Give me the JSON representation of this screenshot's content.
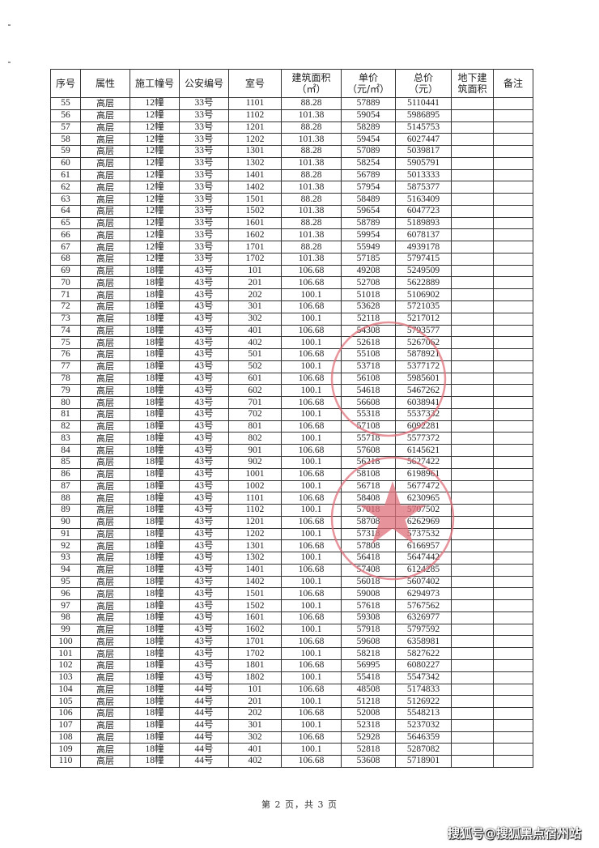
{
  "headers": [
    "序号",
    "属性",
    "施工幢号",
    "公安编号",
    "室号",
    "建筑面积\n（㎡）",
    "单价\n（元/㎡）",
    "总价\n（元）",
    "地下建\n筑面积",
    "备注"
  ],
  "rows": [
    [
      "55",
      "高层",
      "12幢",
      "33号",
      "1101",
      "88.28",
      "57889",
      "5110441"
    ],
    [
      "56",
      "高层",
      "12幢",
      "33号",
      "1102",
      "101.38",
      "59054",
      "5986895"
    ],
    [
      "57",
      "高层",
      "12幢",
      "33号",
      "1201",
      "88.28",
      "58289",
      "5145753"
    ],
    [
      "58",
      "高层",
      "12幢",
      "33号",
      "1202",
      "101.38",
      "59454",
      "6027447"
    ],
    [
      "59",
      "高层",
      "12幢",
      "33号",
      "1301",
      "88.28",
      "57089",
      "5039817"
    ],
    [
      "60",
      "高层",
      "12幢",
      "33号",
      "1302",
      "101.38",
      "58254",
      "5905791"
    ],
    [
      "61",
      "高层",
      "12幢",
      "33号",
      "1401",
      "88.28",
      "56789",
      "5013333"
    ],
    [
      "62",
      "高层",
      "12幢",
      "33号",
      "1402",
      "101.38",
      "57954",
      "5875377"
    ],
    [
      "63",
      "高层",
      "12幢",
      "33号",
      "1501",
      "88.28",
      "58489",
      "5163409"
    ],
    [
      "64",
      "高层",
      "12幢",
      "33号",
      "1502",
      "101.38",
      "59654",
      "6047723"
    ],
    [
      "65",
      "高层",
      "12幢",
      "33号",
      "1601",
      "88.28",
      "58789",
      "5189893"
    ],
    [
      "66",
      "高层",
      "12幢",
      "33号",
      "1602",
      "101.38",
      "59954",
      "6078137"
    ],
    [
      "67",
      "高层",
      "12幢",
      "33号",
      "1701",
      "88.28",
      "55949",
      "4939178"
    ],
    [
      "68",
      "高层",
      "12幢",
      "33号",
      "1702",
      "101.38",
      "57185",
      "5797415"
    ],
    [
      "69",
      "高层",
      "18幢",
      "43号",
      "101",
      "106.68",
      "49208",
      "5249509"
    ],
    [
      "70",
      "高层",
      "18幢",
      "43号",
      "201",
      "106.68",
      "52708",
      "5622889"
    ],
    [
      "71",
      "高层",
      "18幢",
      "43号",
      "202",
      "100.1",
      "51018",
      "5106902"
    ],
    [
      "72",
      "高层",
      "18幢",
      "43号",
      "301",
      "106.68",
      "53628",
      "5721035"
    ],
    [
      "73",
      "高层",
      "18幢",
      "43号",
      "302",
      "100.1",
      "52118",
      "5217012"
    ],
    [
      "74",
      "高层",
      "18幢",
      "43号",
      "401",
      "106.68",
      "54308",
      "5793577"
    ],
    [
      "75",
      "高层",
      "18幢",
      "43号",
      "402",
      "100.1",
      "52618",
      "5267062"
    ],
    [
      "76",
      "高层",
      "18幢",
      "43号",
      "501",
      "106.68",
      "55108",
      "5878921"
    ],
    [
      "77",
      "高层",
      "18幢",
      "43号",
      "502",
      "100.1",
      "53718",
      "5377172"
    ],
    [
      "78",
      "高层",
      "18幢",
      "43号",
      "601",
      "106.68",
      "56108",
      "5985601"
    ],
    [
      "79",
      "高层",
      "18幢",
      "43号",
      "602",
      "100.1",
      "54618",
      "5467262"
    ],
    [
      "80",
      "高层",
      "18幢",
      "43号",
      "701",
      "106.68",
      "56608",
      "6038941"
    ],
    [
      "81",
      "高层",
      "18幢",
      "43号",
      "702",
      "100.1",
      "55318",
      "5537332"
    ],
    [
      "82",
      "高层",
      "18幢",
      "43号",
      "801",
      "106.68",
      "57108",
      "6092281"
    ],
    [
      "83",
      "高层",
      "18幢",
      "43号",
      "802",
      "100.1",
      "55718",
      "5577372"
    ],
    [
      "84",
      "高层",
      "18幢",
      "43号",
      "901",
      "106.68",
      "57608",
      "6145621"
    ],
    [
      "85",
      "高层",
      "18幢",
      "43号",
      "902",
      "100.1",
      "56218",
      "5627422"
    ],
    [
      "86",
      "高层",
      "18幢",
      "43号",
      "1001",
      "106.68",
      "58108",
      "6198961"
    ],
    [
      "87",
      "高层",
      "18幢",
      "43号",
      "1002",
      "100.1",
      "56718",
      "5677472"
    ],
    [
      "88",
      "高层",
      "18幢",
      "43号",
      "1101",
      "106.68",
      "58408",
      "6230965"
    ],
    [
      "89",
      "高层",
      "18幢",
      "43号",
      "1102",
      "100.1",
      "57018",
      "5707502"
    ],
    [
      "90",
      "高层",
      "18幢",
      "43号",
      "1201",
      "106.68",
      "58708",
      "6262969"
    ],
    [
      "91",
      "高层",
      "18幢",
      "43号",
      "1202",
      "100.1",
      "57318",
      "5737532"
    ],
    [
      "92",
      "高层",
      "18幢",
      "43号",
      "1301",
      "106.68",
      "57808",
      "6166957"
    ],
    [
      "93",
      "高层",
      "18幢",
      "43号",
      "1302",
      "100.1",
      "56418",
      "5647442"
    ],
    [
      "94",
      "高层",
      "18幢",
      "43号",
      "1401",
      "106.68",
      "57408",
      "6124285"
    ],
    [
      "95",
      "高层",
      "18幢",
      "43号",
      "1402",
      "100.1",
      "56018",
      "5607402"
    ],
    [
      "96",
      "高层",
      "18幢",
      "43号",
      "1501",
      "106.68",
      "59008",
      "6294973"
    ],
    [
      "97",
      "高层",
      "18幢",
      "43号",
      "1502",
      "100.1",
      "57618",
      "5767562"
    ],
    [
      "98",
      "高层",
      "18幢",
      "43号",
      "1601",
      "106.68",
      "59308",
      "6326977"
    ],
    [
      "99",
      "高层",
      "18幢",
      "43号",
      "1602",
      "100.1",
      "57918",
      "5797592"
    ],
    [
      "100",
      "高层",
      "18幢",
      "43号",
      "1701",
      "106.68",
      "59608",
      "6358981"
    ],
    [
      "101",
      "高层",
      "18幢",
      "43号",
      "1702",
      "100.1",
      "58218",
      "5827622"
    ],
    [
      "102",
      "高层",
      "18幢",
      "43号",
      "1801",
      "106.68",
      "56995",
      "6080227"
    ],
    [
      "103",
      "高层",
      "18幢",
      "43号",
      "1802",
      "100.1",
      "55418",
      "5547342"
    ],
    [
      "104",
      "高层",
      "18幢",
      "44号",
      "101",
      "106.68",
      "48508",
      "5174833"
    ],
    [
      "105",
      "高层",
      "18幢",
      "44号",
      "201",
      "100.1",
      "51218",
      "5126922"
    ],
    [
      "106",
      "高层",
      "18幢",
      "44号",
      "202",
      "106.68",
      "52008",
      "5548213"
    ],
    [
      "107",
      "高层",
      "18幢",
      "44号",
      "301",
      "100.1",
      "52318",
      "5237032"
    ],
    [
      "108",
      "高层",
      "18幢",
      "44号",
      "302",
      "106.68",
      "52928",
      "5646359"
    ],
    [
      "109",
      "高层",
      "18幢",
      "44号",
      "401",
      "100.1",
      "52818",
      "5287082"
    ],
    [
      "110",
      "高层",
      "18幢",
      "44号",
      "402",
      "106.68",
      "53608",
      "5718901"
    ]
  ],
  "footer": "第 2 页，共 3 页",
  "watermark": "搜狐号@搜狐黑点宿州站",
  "stamp_color": "#e0707a"
}
